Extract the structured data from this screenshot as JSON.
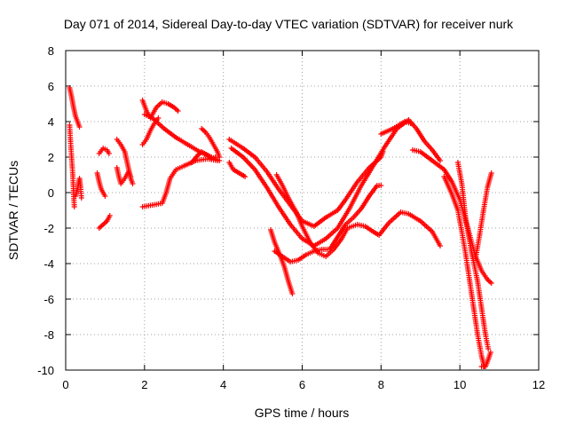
{
  "chart_data": {
    "type": "scatter",
    "title": "Day 071 of 2014, Sidereal Day-to-day VTEC variation (SDTVAR) for receiver nurk",
    "xlabel": "GPS time / hours",
    "ylabel": "SDTVAR / TECUs",
    "xlim": [
      0,
      12
    ],
    "ylim": [
      -10,
      8
    ],
    "xticks": [
      0,
      2,
      4,
      6,
      8,
      10,
      12
    ],
    "yticks": [
      -10,
      -8,
      -6,
      -4,
      -2,
      0,
      2,
      4,
      6,
      8
    ],
    "grid": true,
    "marker": "+",
    "color": "#ff0000",
    "series": [
      {
        "name": "s1",
        "points": [
          [
            0.1,
            5.9
          ],
          [
            0.15,
            5.4
          ],
          [
            0.2,
            4.8
          ],
          [
            0.25,
            4.3
          ],
          [
            0.3,
            4.0
          ],
          [
            0.35,
            3.7
          ]
        ]
      },
      {
        "name": "s2",
        "points": [
          [
            0.1,
            3.8
          ],
          [
            0.12,
            3.0
          ],
          [
            0.15,
            2.0
          ],
          [
            0.18,
            1.0
          ],
          [
            0.2,
            0.0
          ],
          [
            0.22,
            -0.8
          ]
        ]
      },
      {
        "name": "s3",
        "points": [
          [
            0.25,
            -0.2
          ],
          [
            0.3,
            0.2
          ],
          [
            0.35,
            0.8
          ],
          [
            0.38,
            0.3
          ],
          [
            0.4,
            -0.3
          ]
        ]
      },
      {
        "name": "s4",
        "points": [
          [
            0.85,
            2.2
          ],
          [
            0.95,
            2.5
          ],
          [
            1.05,
            2.4
          ],
          [
            1.1,
            2.2
          ]
        ]
      },
      {
        "name": "s5",
        "points": [
          [
            0.8,
            1.1
          ],
          [
            0.85,
            0.6
          ],
          [
            0.9,
            0.2
          ],
          [
            1.0,
            -0.2
          ]
        ]
      },
      {
        "name": "s6",
        "points": [
          [
            0.85,
            -2.0
          ],
          [
            0.95,
            -1.8
          ],
          [
            1.05,
            -1.6
          ],
          [
            1.12,
            -1.3
          ]
        ]
      },
      {
        "name": "s7",
        "points": [
          [
            1.3,
            3.0
          ],
          [
            1.4,
            2.7
          ],
          [
            1.5,
            2.3
          ],
          [
            1.55,
            1.8
          ],
          [
            1.6,
            1.3
          ],
          [
            1.65,
            0.8
          ],
          [
            1.7,
            0.5
          ]
        ]
      },
      {
        "name": "s8",
        "points": [
          [
            1.3,
            1.4
          ],
          [
            1.35,
            0.9
          ],
          [
            1.4,
            0.5
          ],
          [
            1.5,
            0.8
          ],
          [
            1.6,
            1.2
          ],
          [
            1.65,
            0.9
          ]
        ]
      },
      {
        "name": "s9",
        "points": [
          [
            1.95,
            5.2
          ],
          [
            2.05,
            4.6
          ],
          [
            2.15,
            4.2
          ],
          [
            2.3,
            4.8
          ],
          [
            2.45,
            5.1
          ],
          [
            2.6,
            5.0
          ],
          [
            2.75,
            4.8
          ],
          [
            2.85,
            4.6
          ]
        ]
      },
      {
        "name": "s10",
        "points": [
          [
            1.95,
            2.7
          ],
          [
            2.05,
            3.0
          ],
          [
            2.15,
            3.5
          ],
          [
            2.25,
            3.9
          ],
          [
            2.35,
            4.2
          ]
        ]
      },
      {
        "name": "s11",
        "points": [
          [
            2.0,
            4.4
          ],
          [
            2.2,
            4.2
          ],
          [
            2.5,
            3.6
          ],
          [
            2.8,
            3.1
          ],
          [
            3.1,
            2.7
          ],
          [
            3.4,
            2.3
          ],
          [
            3.7,
            2.0
          ],
          [
            3.9,
            1.8
          ]
        ]
      },
      {
        "name": "s12",
        "points": [
          [
            1.95,
            -0.8
          ],
          [
            2.2,
            -0.7
          ],
          [
            2.45,
            -0.6
          ],
          [
            2.55,
            0.0
          ],
          [
            2.65,
            0.8
          ],
          [
            2.8,
            1.3
          ],
          [
            3.0,
            1.5
          ],
          [
            3.3,
            1.8
          ],
          [
            3.6,
            1.9
          ],
          [
            3.85,
            1.8
          ]
        ]
      },
      {
        "name": "s13",
        "points": [
          [
            3.2,
            1.7
          ],
          [
            3.35,
            2.1
          ],
          [
            3.45,
            2.3
          ],
          [
            3.6,
            2.1
          ],
          [
            3.7,
            1.9
          ],
          [
            3.8,
            2.0
          ]
        ]
      },
      {
        "name": "s14",
        "points": [
          [
            3.45,
            3.6
          ],
          [
            3.55,
            3.4
          ],
          [
            3.65,
            3.1
          ],
          [
            3.75,
            2.7
          ],
          [
            3.85,
            2.3
          ],
          [
            3.9,
            2.0
          ]
        ]
      },
      {
        "name": "s15",
        "points": [
          [
            4.15,
            1.7
          ],
          [
            4.25,
            1.3
          ],
          [
            4.4,
            1.1
          ],
          [
            4.55,
            0.9
          ]
        ]
      },
      {
        "name": "s16",
        "points": [
          [
            4.15,
            3.0
          ],
          [
            4.5,
            2.5
          ],
          [
            4.8,
            2.0
          ],
          [
            5.1,
            1.2
          ],
          [
            5.4,
            0.2
          ],
          [
            5.7,
            -0.7
          ],
          [
            6.0,
            -1.6
          ],
          [
            6.3,
            -1.9
          ],
          [
            6.6,
            -1.4
          ],
          [
            6.9,
            -1.0
          ],
          [
            7.1,
            -0.4
          ],
          [
            7.4,
            0.6
          ],
          [
            7.7,
            1.4
          ],
          [
            8.0,
            2.0
          ],
          [
            8.05,
            2.3
          ]
        ]
      },
      {
        "name": "s17",
        "points": [
          [
            4.2,
            2.5
          ],
          [
            4.5,
            2.0
          ],
          [
            4.8,
            1.3
          ],
          [
            5.1,
            0.3
          ],
          [
            5.4,
            -0.8
          ],
          [
            5.7,
            -1.8
          ],
          [
            6.0,
            -2.6
          ],
          [
            6.3,
            -3.0
          ],
          [
            6.6,
            -2.6
          ],
          [
            6.9,
            -2.0
          ],
          [
            7.2,
            -0.9
          ],
          [
            7.5,
            0.4
          ],
          [
            7.8,
            1.5
          ],
          [
            8.1,
            2.6
          ],
          [
            8.4,
            3.6
          ],
          [
            8.7,
            4.1
          ],
          [
            8.9,
            3.6
          ],
          [
            9.1,
            2.9
          ],
          [
            9.3,
            2.4
          ],
          [
            9.5,
            1.8
          ]
        ]
      },
      {
        "name": "s18",
        "points": [
          [
            5.3,
            -3.3
          ],
          [
            5.5,
            -3.6
          ],
          [
            5.7,
            -3.9
          ],
          [
            5.9,
            -3.8
          ],
          [
            6.1,
            -3.5
          ],
          [
            6.3,
            -3.3
          ],
          [
            6.5,
            -3.2
          ],
          [
            6.7,
            -3.2
          ],
          [
            6.9,
            -2.5
          ],
          [
            7.1,
            -1.8
          ],
          [
            7.3,
            -1.4
          ],
          [
            7.5,
            -0.9
          ],
          [
            7.7,
            -0.2
          ],
          [
            7.9,
            0.4
          ],
          [
            8.0,
            0.4
          ]
        ]
      },
      {
        "name": "s19",
        "points": [
          [
            5.35,
            1.0
          ],
          [
            5.5,
            0.4
          ],
          [
            5.65,
            -0.3
          ],
          [
            5.85,
            -1.1
          ],
          [
            6.0,
            -1.9
          ],
          [
            6.2,
            -2.8
          ],
          [
            6.4,
            -3.4
          ],
          [
            6.6,
            -3.6
          ],
          [
            6.8,
            -3.2
          ],
          [
            7.0,
            -2.6
          ],
          [
            7.15,
            -2.0
          ],
          [
            7.4,
            -1.8
          ],
          [
            7.6,
            -1.9
          ],
          [
            7.8,
            -2.2
          ],
          [
            7.95,
            -2.4
          ],
          [
            8.2,
            -1.7
          ],
          [
            8.5,
            -1.1
          ],
          [
            8.7,
            -1.2
          ],
          [
            9.0,
            -1.6
          ],
          [
            9.3,
            -2.2
          ],
          [
            9.5,
            -3.0
          ]
        ]
      },
      {
        "name": "s20",
        "points": [
          [
            5.2,
            -2.1
          ],
          [
            5.3,
            -2.8
          ],
          [
            5.45,
            -3.6
          ],
          [
            5.55,
            -4.2
          ],
          [
            5.65,
            -5.0
          ],
          [
            5.75,
            -5.7
          ]
        ]
      },
      {
        "name": "s21",
        "points": [
          [
            8.0,
            3.3
          ],
          [
            8.3,
            3.6
          ],
          [
            8.6,
            4.0
          ],
          [
            8.75,
            3.9
          ]
        ]
      },
      {
        "name": "s22",
        "points": [
          [
            8.8,
            2.4
          ],
          [
            9.0,
            2.3
          ],
          [
            9.3,
            1.8
          ],
          [
            9.6,
            1.3
          ],
          [
            9.8,
            0.6
          ],
          [
            10.0,
            -0.4
          ],
          [
            10.2,
            -2.0
          ],
          [
            10.4,
            -3.6
          ],
          [
            10.55,
            -4.4
          ],
          [
            10.7,
            -4.9
          ],
          [
            10.8,
            -5.1
          ]
        ]
      },
      {
        "name": "s23",
        "points": [
          [
            9.6,
            0.9
          ],
          [
            9.8,
            -0.1
          ],
          [
            9.95,
            -1.0
          ],
          [
            10.05,
            -2.2
          ],
          [
            10.15,
            -3.5
          ],
          [
            10.25,
            -5.0
          ],
          [
            10.35,
            -6.5
          ],
          [
            10.45,
            -8.0
          ],
          [
            10.55,
            -9.2
          ],
          [
            10.62,
            -9.8
          ]
        ]
      },
      {
        "name": "s24",
        "points": [
          [
            9.95,
            1.7
          ],
          [
            10.05,
            0.5
          ],
          [
            10.15,
            -1.5
          ],
          [
            10.3,
            -3.4
          ],
          [
            10.45,
            -5.0
          ],
          [
            10.55,
            -6.5
          ],
          [
            10.65,
            -8.0
          ],
          [
            10.72,
            -8.8
          ]
        ]
      },
      {
        "name": "s25",
        "points": [
          [
            10.55,
            -9.8
          ],
          [
            10.65,
            -9.8
          ],
          [
            10.72,
            -9.4
          ],
          [
            10.78,
            -9.0
          ]
        ]
      },
      {
        "name": "s26",
        "points": [
          [
            10.4,
            -3.7
          ],
          [
            10.5,
            -2.4
          ],
          [
            10.6,
            -1.0
          ],
          [
            10.7,
            0.3
          ],
          [
            10.8,
            1.1
          ]
        ]
      }
    ]
  }
}
